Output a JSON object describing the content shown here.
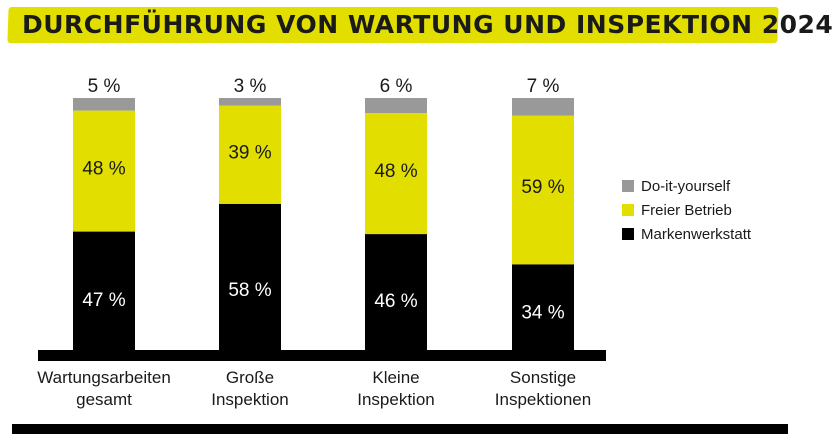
{
  "chart_data": {
    "type": "bar",
    "stacked": true,
    "title": "DURCHFÜHRUNG VON WARTUNG UND INSPEKTION 2024",
    "categories": [
      [
        "Wartungsarbeiten",
        "gesamt"
      ],
      [
        "Große",
        "Inspektion"
      ],
      [
        "Kleine",
        "Inspektion"
      ],
      [
        "Sonstige",
        "Inspektionen"
      ]
    ],
    "series": [
      {
        "name": "Markenwerkstatt",
        "color": "#000000",
        "values": [
          47,
          58,
          46,
          34
        ]
      },
      {
        "name": "Freier Betrieb",
        "color": "#e2df00",
        "values": [
          48,
          39,
          48,
          59
        ]
      },
      {
        "name": "Do-it-yourself",
        "color": "#999999",
        "values": [
          5,
          3,
          6,
          7
        ]
      }
    ],
    "value_suffix": " %",
    "legend": {
      "placement": "right",
      "order": [
        "Do-it-yourself",
        "Freier Betrieb",
        "Markenwerkstatt"
      ]
    },
    "ylim": [
      0,
      100
    ],
    "grid": false
  }
}
